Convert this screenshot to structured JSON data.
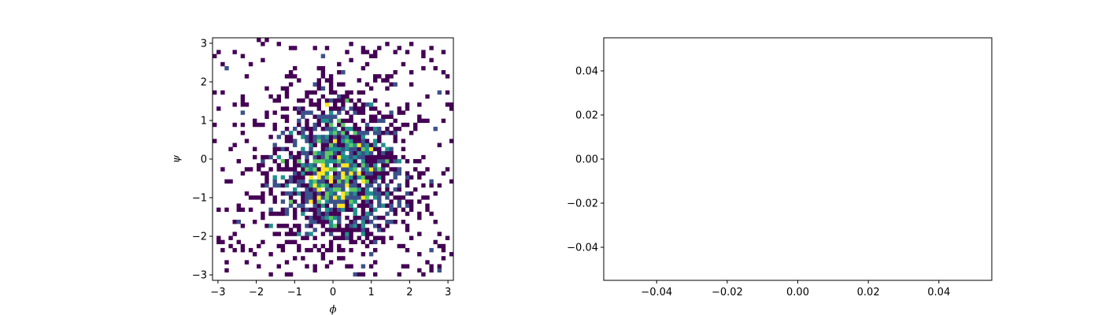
{
  "chart_data": [
    {
      "type": "heatmap",
      "title": "",
      "xlabel": "ϕ",
      "ylabel": "ψ",
      "xlim": [
        -3.1416,
        3.1416
      ],
      "ylim": [
        -3.1416,
        3.1416
      ],
      "xticks": [
        -3,
        -2,
        -1,
        0,
        1,
        2,
        3
      ],
      "yticks": [
        -3,
        -2,
        -1,
        0,
        1,
        2,
        3
      ],
      "xtick_labels": [
        "−3",
        "−2",
        "−1",
        "0",
        "1",
        "2",
        "3"
      ],
      "ytick_labels": [
        "−3",
        "−2",
        "−1",
        "0",
        "1",
        "2",
        "3"
      ],
      "bins": [
        60,
        60
      ],
      "colormap": "viridis",
      "empty_bins": "white",
      "distribution": {
        "description_center": [
          0.1,
          -0.3
        ],
        "sigma": 0.8
      },
      "grid": false,
      "legend": "none"
    },
    {
      "type": "scatter",
      "title": "",
      "xlabel": "",
      "ylabel": "",
      "series": [],
      "xlim": [
        -0.055,
        0.055
      ],
      "ylim": [
        -0.055,
        0.055
      ],
      "xticks": [
        -0.04,
        -0.02,
        0.0,
        0.02,
        0.04
      ],
      "yticks": [
        -0.04,
        -0.02,
        0.0,
        0.02,
        0.04
      ],
      "xtick_labels": [
        "−0.04",
        "−0.02",
        "0.00",
        "0.02",
        "0.04"
      ],
      "ytick_labels": [
        "−0.04",
        "−0.02",
        "0.00",
        "0.02",
        "0.04"
      ],
      "grid": false,
      "legend": "none"
    }
  ],
  "colors": {
    "viridis": [
      "#440154",
      "#3b528b",
      "#21918c",
      "#5ec962",
      "#fde725"
    ]
  }
}
